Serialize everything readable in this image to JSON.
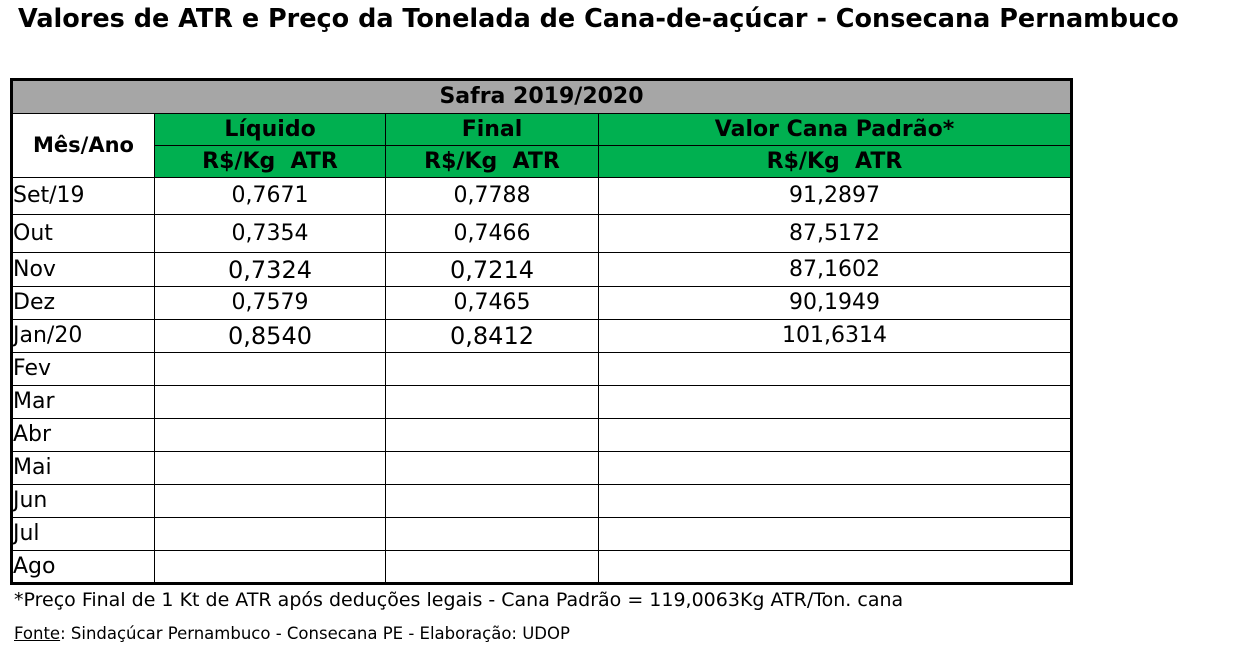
{
  "title": "Valores de ATR e Preço da Tonelada de Cana-de-açúcar - Consecana Pernambuco",
  "table": {
    "safra": "Safra 2019/2020",
    "col_mes": "Mês/Ano",
    "col_liquido": "Líquido",
    "col_final": "Final",
    "col_valor": "Valor Cana Padrão*",
    "unit_liquido": "R$/Kg  ATR",
    "unit_final": "R$/Kg  ATR",
    "unit_valor": "R$/Kg  ATR",
    "rows": [
      {
        "mes": "Set/19",
        "liquido": "0,7671",
        "final": "0,7788",
        "valor": "91,2897"
      },
      {
        "mes": "Out",
        "liquido": "0,7354",
        "final": "0,7466",
        "valor": "87,5172"
      },
      {
        "mes": "Nov",
        "liquido": "0,7324",
        "final": "0,7214",
        "valor": "87,1602"
      },
      {
        "mes": "Dez",
        "liquido": "0,7579",
        "final": "0,7465",
        "valor": "90,1949"
      },
      {
        "mes": "Jan/20",
        "liquido": "0,8540",
        "final": "0,8412",
        "valor": "101,6314"
      },
      {
        "mes": "Fev",
        "liquido": "",
        "final": "",
        "valor": ""
      },
      {
        "mes": "Mar",
        "liquido": "",
        "final": "",
        "valor": ""
      },
      {
        "mes": "Abr",
        "liquido": "",
        "final": "",
        "valor": ""
      },
      {
        "mes": "Mai",
        "liquido": "",
        "final": "",
        "valor": ""
      },
      {
        "mes": "Jun",
        "liquido": "",
        "final": "",
        "valor": ""
      },
      {
        "mes": "Jul",
        "liquido": "",
        "final": "",
        "valor": ""
      },
      {
        "mes": "Ago",
        "liquido": "",
        "final": "",
        "valor": ""
      }
    ]
  },
  "footnote": "*Preço Final de 1 Kt de ATR após deduções legais - Cana Padrão = 119,0063Kg ATR/Ton. cana",
  "source_label": "Fonte",
  "source_text": ": Sindaçúcar Pernambuco - Consecana PE - Elaboração: UDOP",
  "colors": {
    "header_green": "#00b050",
    "safra_gray": "#a6a6a6"
  }
}
